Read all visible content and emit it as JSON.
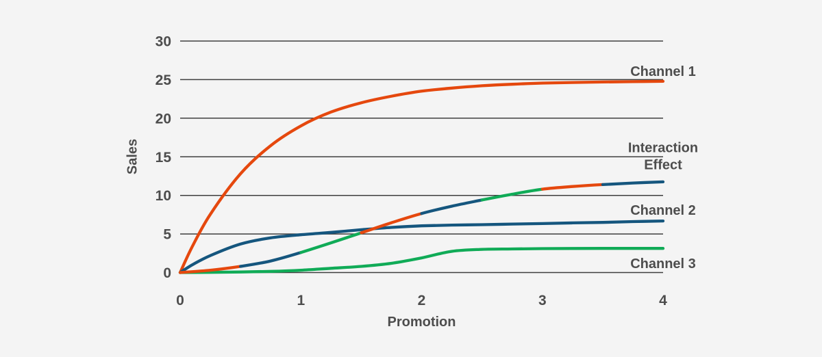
{
  "theme": {
    "background": "#f4f4f4",
    "grid_color": "#3e3e3e",
    "text_color": "#4d4d4d"
  },
  "chart_data": {
    "type": "line",
    "title": "",
    "xlabel": "Promotion",
    "ylabel": "Sales",
    "xlim": [
      0,
      4
    ],
    "ylim": [
      0,
      30
    ],
    "xticks": [
      0,
      1,
      2,
      3,
      4
    ],
    "yticks": [
      0,
      5,
      10,
      15,
      20,
      25,
      30
    ],
    "grid": "horizontal-only",
    "legend_position": "right-annotations",
    "palette": {
      "orange": "#E5480E",
      "blue": "#15567E",
      "green": "#10AB57"
    },
    "series": [
      {
        "name": "Channel 1",
        "color": "orange",
        "points": [
          [
            0,
            0
          ],
          [
            0.1,
            3.35
          ],
          [
            0.25,
            7.55
          ],
          [
            0.5,
            12.8
          ],
          [
            0.75,
            16.45
          ],
          [
            1,
            19.0
          ],
          [
            1.25,
            20.8
          ],
          [
            1.5,
            22.0
          ],
          [
            1.75,
            22.85
          ],
          [
            2,
            23.5
          ],
          [
            2.25,
            23.9
          ],
          [
            2.5,
            24.2
          ],
          [
            2.75,
            24.4
          ],
          [
            3,
            24.55
          ],
          [
            3.25,
            24.63
          ],
          [
            3.5,
            24.69
          ],
          [
            3.75,
            24.74
          ],
          [
            4,
            24.78
          ]
        ]
      },
      {
        "name": "Channel 2",
        "color": "blue",
        "points": [
          [
            0,
            0
          ],
          [
            0.1,
            1.0
          ],
          [
            0.25,
            2.2
          ],
          [
            0.5,
            3.7
          ],
          [
            0.75,
            4.5
          ],
          [
            1,
            4.9
          ],
          [
            1.25,
            5.2
          ],
          [
            1.5,
            5.55
          ],
          [
            1.75,
            5.85
          ],
          [
            2,
            6.05
          ],
          [
            2.25,
            6.15
          ],
          [
            2.5,
            6.2
          ],
          [
            2.75,
            6.28
          ],
          [
            3,
            6.35
          ],
          [
            3.25,
            6.43
          ],
          [
            3.5,
            6.5
          ],
          [
            3.75,
            6.6
          ],
          [
            4,
            6.68
          ]
        ]
      },
      {
        "name": "Channel 3",
        "color": "green",
        "points": [
          [
            0,
            0
          ],
          [
            0.25,
            0.03
          ],
          [
            0.5,
            0.07
          ],
          [
            0.75,
            0.15
          ],
          [
            1,
            0.3
          ],
          [
            1.25,
            0.55
          ],
          [
            1.5,
            0.8
          ],
          [
            1.75,
            1.2
          ],
          [
            2,
            1.9
          ],
          [
            2.25,
            2.75
          ],
          [
            2.5,
            3.0
          ],
          [
            2.75,
            3.06
          ],
          [
            3,
            3.1
          ],
          [
            3.25,
            3.12
          ],
          [
            3.5,
            3.13
          ],
          [
            3.75,
            3.13
          ],
          [
            4,
            3.13
          ]
        ]
      },
      {
        "name": "Interaction Effect",
        "color": "multicolor",
        "color_cycle": [
          "orange",
          "blue",
          "green"
        ],
        "points": [
          [
            0,
            0
          ],
          [
            0.25,
            0.3
          ],
          [
            0.5,
            0.8
          ],
          [
            0.75,
            1.5
          ],
          [
            1,
            2.6
          ],
          [
            1.25,
            3.85
          ],
          [
            1.5,
            5.15
          ],
          [
            1.75,
            6.45
          ],
          [
            2,
            7.65
          ],
          [
            2.25,
            8.6
          ],
          [
            2.5,
            9.4
          ],
          [
            2.75,
            10.15
          ],
          [
            3,
            10.8
          ],
          [
            3.25,
            11.15
          ],
          [
            3.5,
            11.4
          ],
          [
            3.75,
            11.6
          ],
          [
            4,
            11.75
          ]
        ],
        "segments": [
          {
            "color": "orange",
            "x_range": [
              0,
              0.5
            ]
          },
          {
            "color": "blue",
            "x_range": [
              0.5,
              1
            ]
          },
          {
            "color": "green",
            "x_range": [
              1,
              1.5
            ]
          },
          {
            "color": "orange",
            "x_range": [
              1.5,
              2
            ]
          },
          {
            "color": "blue",
            "x_range": [
              2,
              2.5
            ]
          },
          {
            "color": "green",
            "x_range": [
              2.5,
              3
            ]
          },
          {
            "color": "orange",
            "x_range": [
              3,
              3.5
            ]
          },
          {
            "color": "blue",
            "x_range": [
              3.5,
              4
            ]
          }
        ]
      }
    ],
    "annotations": [
      {
        "text": "Channel 1",
        "x": 4,
        "y": 26.1
      },
      {
        "text": "Interaction",
        "x": 4,
        "y": 16.2
      },
      {
        "text": "Effect",
        "x": 4,
        "y": 14.0
      },
      {
        "text": "Channel 2",
        "x": 4,
        "y": 8.1
      },
      {
        "text": "Channel 3",
        "x": 4,
        "y": 1.2
      }
    ]
  }
}
